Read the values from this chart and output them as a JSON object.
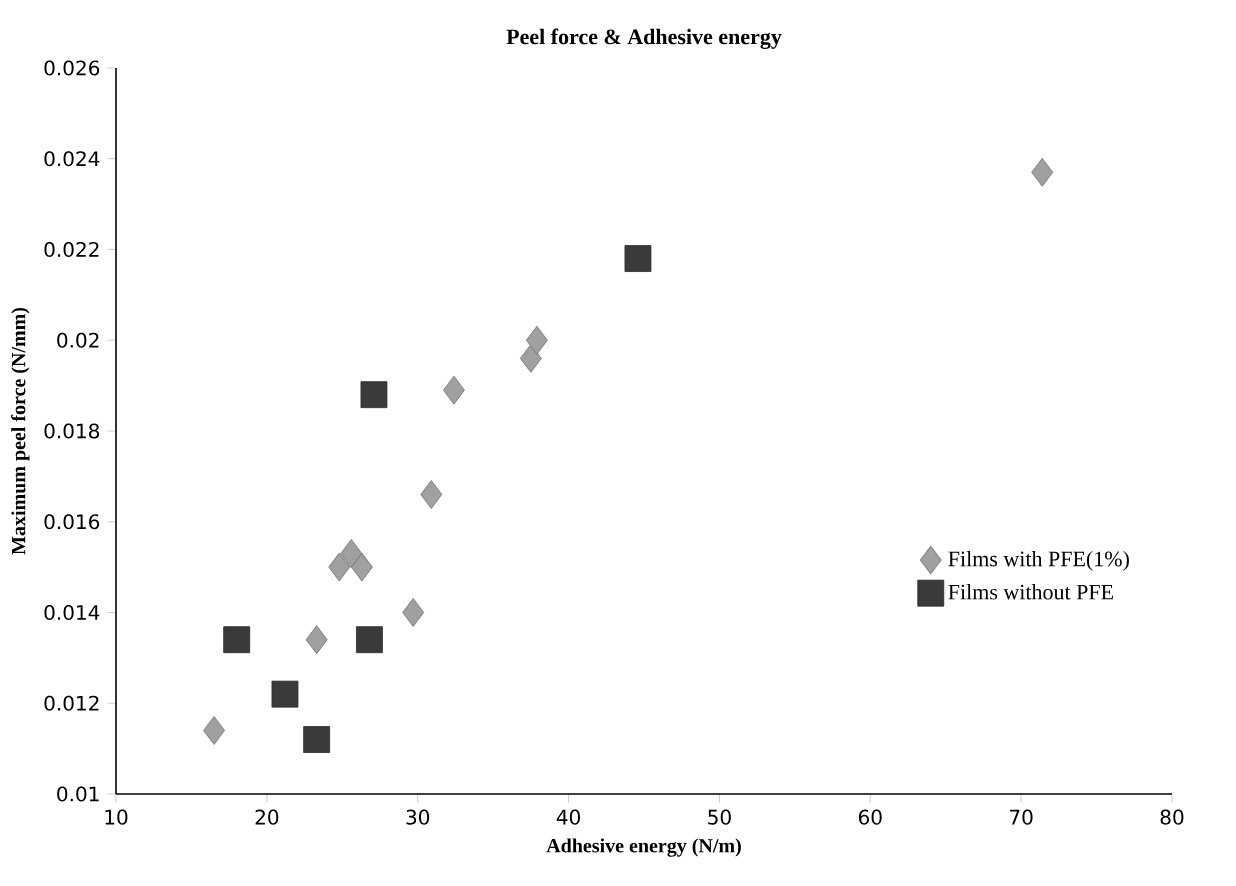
{
  "chart_data": {
    "type": "scatter",
    "title": "Peel force & Adhesive energy",
    "xlabel": "Adhesive energy  (N/m)",
    "ylabel": "Maximum peel force (N/mm)",
    "xlim": [
      10,
      80
    ],
    "xticks": [
      10,
      20,
      30,
      40,
      50,
      60,
      70,
      80
    ],
    "ylim": [
      0.01,
      0.026
    ],
    "yticks": [
      0.01,
      0.012,
      0.014,
      0.016,
      0.018,
      0.02,
      0.022,
      0.024,
      0.026
    ],
    "grid": false,
    "legend": "right",
    "series": [
      {
        "name": "Films with PFE(1%)",
        "color": "#a0a0a0",
        "marker": "diamond",
        "x": [
          16.5,
          23.3,
          24.8,
          25.6,
          26.3,
          29.7,
          30.9,
          32.4,
          37.5,
          37.9,
          71.4
        ],
        "values": [
          0.0114,
          0.0134,
          0.015,
          0.0153,
          0.015,
          0.014,
          0.0166,
          0.0189,
          0.0196,
          0.02,
          0.0237
        ]
      },
      {
        "name": "Films without PFE",
        "color": "#3a3a3a",
        "marker": "square",
        "x": [
          18.0,
          21.2,
          23.3,
          26.8,
          27.1,
          44.6
        ],
        "values": [
          0.0134,
          0.0122,
          0.0112,
          0.0134,
          0.0188,
          0.0218
        ]
      }
    ]
  }
}
